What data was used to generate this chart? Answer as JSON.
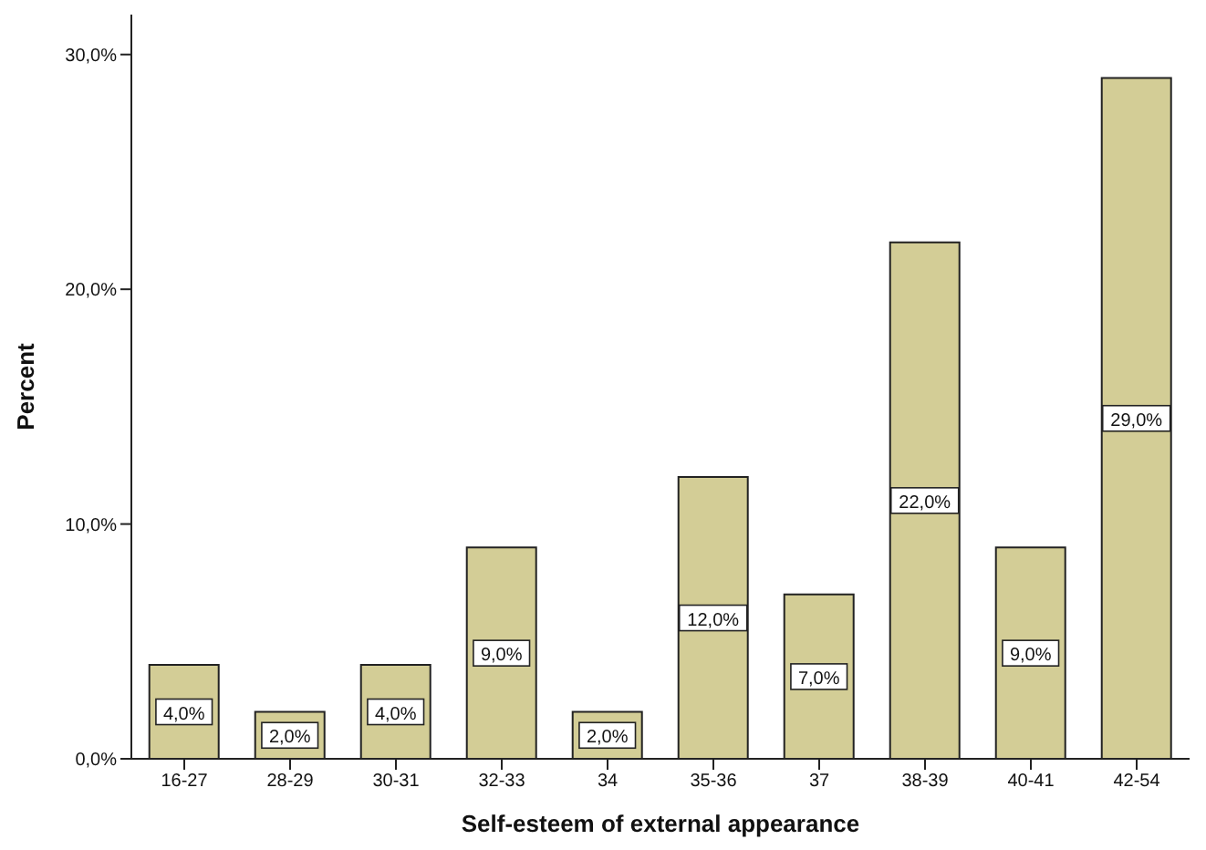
{
  "chart_data": {
    "type": "bar",
    "xlabel": "Self-esteem of external appearance",
    "ylabel": "Percent",
    "categories": [
      "16-27",
      "28-29",
      "30-31",
      "32-33",
      "34",
      "35-36",
      "37",
      "38-39",
      "40-41",
      "42-54"
    ],
    "values": [
      4,
      2,
      4,
      9,
      2,
      12,
      7,
      22,
      9,
      29
    ],
    "value_labels": [
      "4,0%",
      "2,0%",
      "4,0%",
      "9,0%",
      "2,0%",
      "12,0%",
      "7,0%",
      "22,0%",
      "9,0%",
      "29,0%"
    ],
    "color": "#d3cd96",
    "ylim": [
      0,
      31.7
    ],
    "yticks": [
      {
        "value": 0,
        "label": "0,0%"
      },
      {
        "value": 10,
        "label": "10,0%"
      },
      {
        "value": 20,
        "label": "20,0%"
      },
      {
        "value": 30,
        "label": "30,0%"
      }
    ],
    "grid": false
  }
}
